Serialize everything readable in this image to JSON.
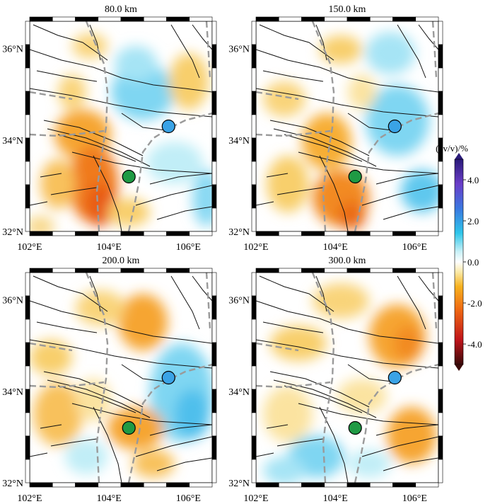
{
  "panels": [
    {
      "title": "80.0 km",
      "station_blue": {
        "lon": 105.5,
        "lat": 34.3
      },
      "station_green": {
        "lon": 104.5,
        "lat": 33.2
      }
    },
    {
      "title": "150.0 km",
      "station_blue": {
        "lon": 105.5,
        "lat": 34.3
      },
      "station_green": {
        "lon": 104.5,
        "lat": 33.2
      }
    },
    {
      "title": "200.0 km",
      "station_blue": {
        "lon": 105.5,
        "lat": 34.3
      },
      "station_green": {
        "lon": 104.5,
        "lat": 33.2
      }
    },
    {
      "title": "300.0 km",
      "station_blue": {
        "lon": 105.5,
        "lat": 34.3
      },
      "station_green": {
        "lon": 104.5,
        "lat": 33.2
      }
    }
  ],
  "axes": {
    "x_ticks": [
      "102°E",
      "104°E",
      "106°E"
    ],
    "y_ticks": [
      "36°N",
      "34°N",
      "32°N"
    ],
    "lon_range": [
      102,
      106.6
    ],
    "lat_range": [
      32,
      36.6
    ]
  },
  "colorbar": {
    "title": "(δv/v)/%",
    "ticks": [
      "4.0",
      "2.0",
      "0.0",
      "-2.0",
      "-4.0"
    ],
    "range": [
      -5,
      5
    ],
    "colors": [
      "#3b0a0a",
      "#c0141a",
      "#f06a12",
      "#f7b21e",
      "#fbe9a6",
      "#ffffff",
      "#c9f1f7",
      "#2ec6ea",
      "#3a78e0",
      "#6a3dc8",
      "#2a1a7a"
    ]
  },
  "legend_colors": {
    "station_blue": "#3aa3e6",
    "station_green": "#1f9a44",
    "fault": "#000000",
    "boundary": "#9a9a9a"
  }
}
